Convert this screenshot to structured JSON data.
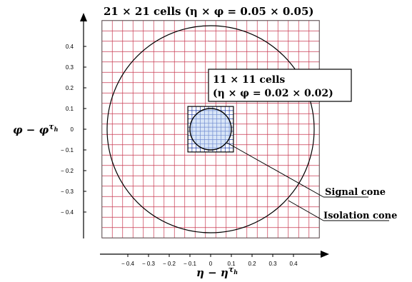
{
  "title": "21 × 21 cells (η × φ = 0.05 × 0.05)",
  "inner_box": {
    "line1": "11 × 11 cells",
    "line2": "(η × φ = 0.02 × 0.02)"
  },
  "labels": {
    "signal_cone": "Signal cone",
    "isolation_cone": "Isolation cone"
  },
  "axes": {
    "x_label": "η − η",
    "x_label_sup": "τ",
    "x_label_sub": "h",
    "y_label": "φ − φ",
    "y_label_sup": "τ",
    "y_label_sub": "h",
    "x_ticks": [
      "− 0.4",
      "− 0.3",
      "− 0.2",
      "− 0.1",
      "0",
      "0.1",
      "0.2",
      "0.3",
      "0.4"
    ],
    "y_ticks": [
      "0.4",
      "0.3",
      "0.2",
      "0.1",
      "0",
      "− 0.1",
      "− 0.2",
      "− 0.3",
      "− 0.4"
    ]
  },
  "grid": {
    "outer_cells": 21,
    "outer_cell_size": 0.05,
    "inner_cells": 11,
    "inner_cell_size": 0.02,
    "signal_cone_radius": 0.1,
    "isolation_cone_radius": 0.5
  },
  "colors": {
    "outer_grid": "#c8384f",
    "inner_grid": "#1a3aa8",
    "signal_fill": "#b8cff0",
    "ink": "#000000"
  }
}
